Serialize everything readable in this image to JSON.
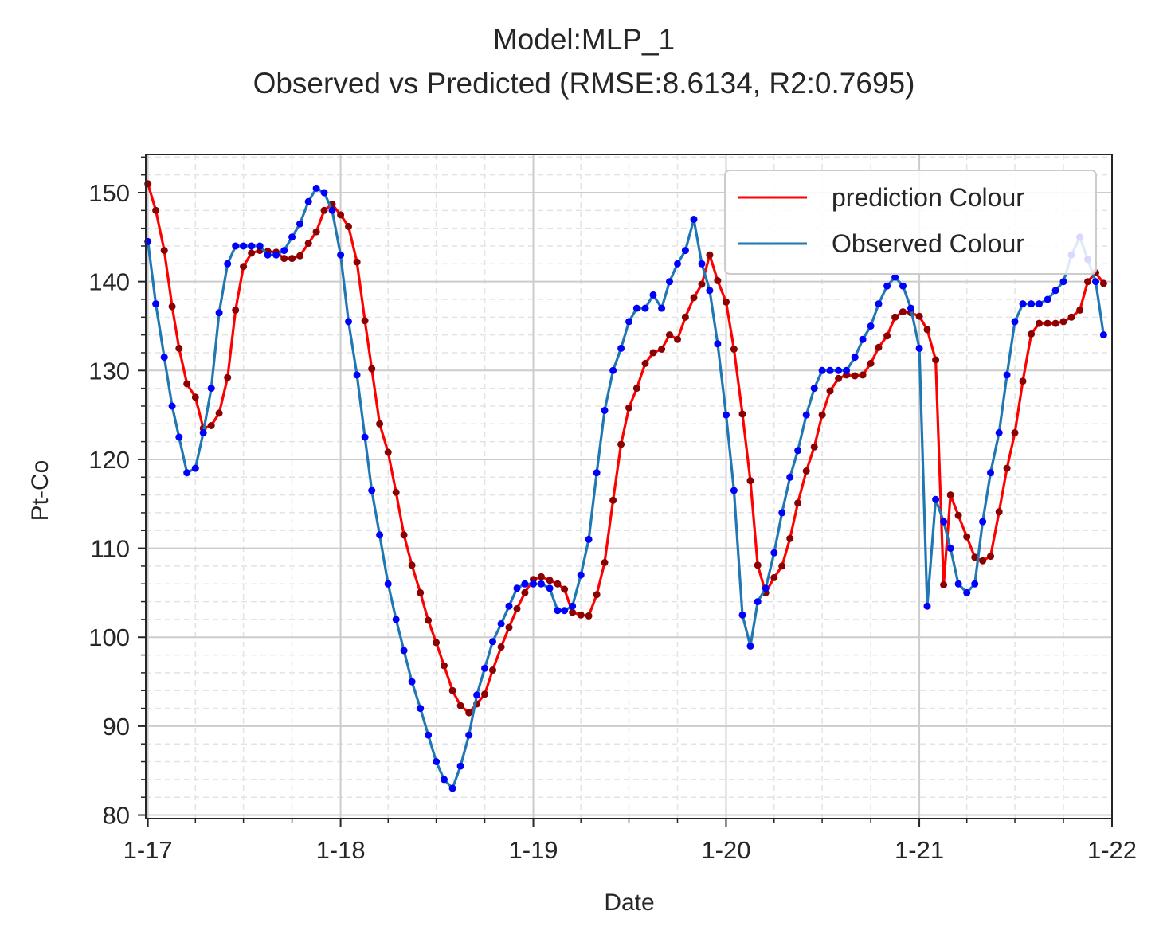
{
  "colors": {
    "prediction": "#ff0000",
    "prediction_marker": "#8b0000",
    "observed": "#1f77b4",
    "observed_marker": "#0000ff",
    "grid_major": "#cccccc",
    "grid_minor": "#e3e3e3",
    "axes": "#262626"
  },
  "chart_data": {
    "type": "line",
    "title_line1": "Model:MLP_1",
    "title_line2": "Observed vs Predicted (RMSE:8.6134, R2:0.7695)",
    "xlabel": "Date",
    "ylabel": "Pt-Co",
    "x_tick_labels": [
      "1-17",
      "1-18",
      "1-19",
      "1-20",
      "1-21",
      "1-22"
    ],
    "x_tick_dates": [
      "2017-01-01",
      "2018-01-01",
      "2019-01-01",
      "2020-01-01",
      "2021-01-01",
      "2022-01-01"
    ],
    "xlim": [
      "2016-12-28",
      "2022-01-01"
    ],
    "y_ticks": [
      80,
      90,
      100,
      110,
      120,
      130,
      140,
      150
    ],
    "ylim": [
      79.6,
      154.3
    ],
    "grid": true,
    "legend_position": "top-right",
    "series": [
      {
        "name": "prediction Colour",
        "values": [
          [
            "2017-01-01",
            151.0
          ],
          [
            "2017-01-16",
            148.0
          ],
          [
            "2017-02-01",
            143.5
          ],
          [
            "2017-02-16",
            137.2
          ],
          [
            "2017-03-01",
            132.5
          ],
          [
            "2017-03-16",
            128.5
          ],
          [
            "2017-04-01",
            127.0
          ],
          [
            "2017-04-16",
            123.5
          ],
          [
            "2017-05-01",
            123.8
          ],
          [
            "2017-05-16",
            125.2
          ],
          [
            "2017-06-01",
            129.2
          ],
          [
            "2017-06-16",
            136.8
          ],
          [
            "2017-07-01",
            141.7
          ],
          [
            "2017-07-16",
            143.2
          ],
          [
            "2017-08-01",
            143.5
          ],
          [
            "2017-08-16",
            143.4
          ],
          [
            "2017-09-01",
            143.3
          ],
          [
            "2017-09-16",
            142.6
          ],
          [
            "2017-10-01",
            142.6
          ],
          [
            "2017-10-16",
            142.9
          ],
          [
            "2017-11-01",
            144.3
          ],
          [
            "2017-11-16",
            145.6
          ],
          [
            "2017-12-01",
            148.0
          ],
          [
            "2017-12-16",
            148.7
          ],
          [
            "2018-01-01",
            147.5
          ],
          [
            "2018-01-16",
            146.2
          ],
          [
            "2018-02-01",
            142.2
          ],
          [
            "2018-02-16",
            135.6
          ],
          [
            "2018-03-01",
            130.2
          ],
          [
            "2018-03-16",
            124.0
          ],
          [
            "2018-04-01",
            120.8
          ],
          [
            "2018-04-16",
            116.3
          ],
          [
            "2018-05-01",
            111.5
          ],
          [
            "2018-05-16",
            108.1
          ],
          [
            "2018-06-01",
            105.0
          ],
          [
            "2018-06-16",
            101.9
          ],
          [
            "2018-07-01",
            99.4
          ],
          [
            "2018-07-16",
            96.8
          ],
          [
            "2018-08-01",
            94.0
          ],
          [
            "2018-08-16",
            92.3
          ],
          [
            "2018-09-01",
            91.5
          ],
          [
            "2018-09-16",
            92.5
          ],
          [
            "2018-10-01",
            93.6
          ],
          [
            "2018-10-16",
            96.3
          ],
          [
            "2018-11-01",
            98.9
          ],
          [
            "2018-11-16",
            101.1
          ],
          [
            "2018-12-01",
            103.2
          ],
          [
            "2018-12-16",
            105.0
          ],
          [
            "2019-01-01",
            106.5
          ],
          [
            "2019-01-16",
            106.8
          ],
          [
            "2019-02-01",
            106.4
          ],
          [
            "2019-02-16",
            106.0
          ],
          [
            "2019-03-01",
            105.4
          ],
          [
            "2019-03-16",
            102.8
          ],
          [
            "2019-04-01",
            102.5
          ],
          [
            "2019-04-16",
            102.4
          ],
          [
            "2019-05-01",
            104.8
          ],
          [
            "2019-05-16",
            108.4
          ],
          [
            "2019-06-01",
            115.4
          ],
          [
            "2019-06-16",
            121.7
          ],
          [
            "2019-07-01",
            125.8
          ],
          [
            "2019-07-16",
            128.0
          ],
          [
            "2019-08-01",
            130.8
          ],
          [
            "2019-08-16",
            132.0
          ],
          [
            "2019-09-01",
            132.4
          ],
          [
            "2019-09-16",
            134.0
          ],
          [
            "2019-10-01",
            133.5
          ],
          [
            "2019-10-16",
            136.0
          ],
          [
            "2019-11-01",
            138.2
          ],
          [
            "2019-11-16",
            139.7
          ],
          [
            "2019-12-01",
            143.0
          ],
          [
            "2019-12-16",
            140.1
          ],
          [
            "2020-01-01",
            137.7
          ],
          [
            "2020-01-16",
            132.4
          ],
          [
            "2020-02-01",
            125.1
          ],
          [
            "2020-02-16",
            117.6
          ],
          [
            "2020-03-01",
            108.1
          ],
          [
            "2020-03-16",
            105.0
          ],
          [
            "2020-04-01",
            106.7
          ],
          [
            "2020-04-16",
            108.0
          ],
          [
            "2020-05-01",
            111.1
          ],
          [
            "2020-05-16",
            115.1
          ],
          [
            "2020-06-01",
            118.7
          ],
          [
            "2020-06-16",
            121.4
          ],
          [
            "2020-07-01",
            125.0
          ],
          [
            "2020-07-16",
            127.7
          ],
          [
            "2020-08-01",
            129.1
          ],
          [
            "2020-08-16",
            129.5
          ],
          [
            "2020-09-01",
            129.4
          ],
          [
            "2020-09-16",
            129.5
          ],
          [
            "2020-10-01",
            130.8
          ],
          [
            "2020-10-16",
            132.6
          ],
          [
            "2020-11-01",
            133.9
          ],
          [
            "2020-11-16",
            136.0
          ],
          [
            "2020-12-01",
            136.6
          ],
          [
            "2020-12-16",
            136.5
          ],
          [
            "2021-01-01",
            136.1
          ],
          [
            "2021-01-16",
            134.6
          ],
          [
            "2021-02-01",
            131.2
          ],
          [
            "2021-02-16",
            105.9
          ],
          [
            "2021-03-01",
            116.0
          ],
          [
            "2021-03-16",
            113.7
          ],
          [
            "2021-04-01",
            111.3
          ],
          [
            "2021-04-16",
            109.0
          ],
          [
            "2021-05-01",
            108.6
          ],
          [
            "2021-05-16",
            109.1
          ],
          [
            "2021-06-01",
            114.1
          ],
          [
            "2021-06-16",
            119.0
          ],
          [
            "2021-07-01",
            123.0
          ],
          [
            "2021-07-16",
            128.8
          ],
          [
            "2021-08-01",
            134.1
          ],
          [
            "2021-08-16",
            135.3
          ],
          [
            "2021-09-01",
            135.3
          ],
          [
            "2021-09-16",
            135.3
          ],
          [
            "2021-10-01",
            135.5
          ],
          [
            "2021-10-16",
            136.0
          ],
          [
            "2021-11-01",
            136.8
          ],
          [
            "2021-11-16",
            140.0
          ],
          [
            "2021-12-01",
            141.0
          ],
          [
            "2021-12-16",
            139.8
          ]
        ]
      },
      {
        "name": "Observed Colour",
        "values": [
          [
            "2017-01-01",
            144.5
          ],
          [
            "2017-01-16",
            137.5
          ],
          [
            "2017-02-01",
            131.5
          ],
          [
            "2017-02-16",
            126.0
          ],
          [
            "2017-03-01",
            122.5
          ],
          [
            "2017-03-16",
            118.5
          ],
          [
            "2017-04-01",
            119.0
          ],
          [
            "2017-04-16",
            123.0
          ],
          [
            "2017-05-01",
            128.0
          ],
          [
            "2017-05-16",
            136.5
          ],
          [
            "2017-06-01",
            142.0
          ],
          [
            "2017-06-16",
            144.0
          ],
          [
            "2017-07-01",
            144.0
          ],
          [
            "2017-07-16",
            144.0
          ],
          [
            "2017-08-01",
            144.0
          ],
          [
            "2017-08-16",
            143.0
          ],
          [
            "2017-09-01",
            143.0
          ],
          [
            "2017-09-16",
            143.5
          ],
          [
            "2017-10-01",
            145.0
          ],
          [
            "2017-10-16",
            146.5
          ],
          [
            "2017-11-01",
            149.0
          ],
          [
            "2017-11-16",
            150.5
          ],
          [
            "2017-12-01",
            150.0
          ],
          [
            "2017-12-16",
            148.0
          ],
          [
            "2018-01-01",
            143.0
          ],
          [
            "2018-01-16",
            135.5
          ],
          [
            "2018-02-01",
            129.5
          ],
          [
            "2018-02-16",
            122.5
          ],
          [
            "2018-03-01",
            116.5
          ],
          [
            "2018-03-16",
            111.5
          ],
          [
            "2018-04-01",
            106.0
          ],
          [
            "2018-04-16",
            102.0
          ],
          [
            "2018-05-01",
            98.5
          ],
          [
            "2018-05-16",
            95.0
          ],
          [
            "2018-06-01",
            92.0
          ],
          [
            "2018-06-16",
            89.0
          ],
          [
            "2018-07-01",
            86.0
          ],
          [
            "2018-07-16",
            84.0
          ],
          [
            "2018-08-01",
            83.0
          ],
          [
            "2018-08-16",
            85.5
          ],
          [
            "2018-09-01",
            89.0
          ],
          [
            "2018-09-16",
            93.5
          ],
          [
            "2018-10-01",
            96.5
          ],
          [
            "2018-10-16",
            99.5
          ],
          [
            "2018-11-01",
            101.5
          ],
          [
            "2018-11-16",
            103.5
          ],
          [
            "2018-12-01",
            105.5
          ],
          [
            "2018-12-16",
            106.0
          ],
          [
            "2019-01-01",
            106.0
          ],
          [
            "2019-01-16",
            106.0
          ],
          [
            "2019-02-01",
            105.5
          ],
          [
            "2019-02-16",
            103.0
          ],
          [
            "2019-03-01",
            103.0
          ],
          [
            "2019-03-16",
            103.5
          ],
          [
            "2019-04-01",
            107.0
          ],
          [
            "2019-04-16",
            111.0
          ],
          [
            "2019-05-01",
            118.5
          ],
          [
            "2019-05-16",
            125.5
          ],
          [
            "2019-06-01",
            130.0
          ],
          [
            "2019-06-16",
            132.5
          ],
          [
            "2019-07-01",
            135.5
          ],
          [
            "2019-07-16",
            137.0
          ],
          [
            "2019-08-01",
            137.0
          ],
          [
            "2019-08-16",
            138.5
          ],
          [
            "2019-09-01",
            137.0
          ],
          [
            "2019-09-16",
            140.0
          ],
          [
            "2019-10-01",
            142.0
          ],
          [
            "2019-10-16",
            143.5
          ],
          [
            "2019-11-01",
            147.0
          ],
          [
            "2019-11-16",
            142.0
          ],
          [
            "2019-12-01",
            139.0
          ],
          [
            "2019-12-16",
            133.0
          ],
          [
            "2020-01-01",
            125.0
          ],
          [
            "2020-01-16",
            116.5
          ],
          [
            "2020-02-01",
            102.5
          ],
          [
            "2020-02-16",
            99.0
          ],
          [
            "2020-03-01",
            104.0
          ],
          [
            "2020-03-16",
            105.5
          ],
          [
            "2020-04-01",
            109.5
          ],
          [
            "2020-04-16",
            114.0
          ],
          [
            "2020-05-01",
            118.0
          ],
          [
            "2020-05-16",
            121.0
          ],
          [
            "2020-06-01",
            125.0
          ],
          [
            "2020-06-16",
            128.0
          ],
          [
            "2020-07-01",
            130.0
          ],
          [
            "2020-07-16",
            130.0
          ],
          [
            "2020-08-01",
            130.0
          ],
          [
            "2020-08-16",
            130.0
          ],
          [
            "2020-09-01",
            131.5
          ],
          [
            "2020-09-16",
            133.5
          ],
          [
            "2020-10-01",
            135.0
          ],
          [
            "2020-10-16",
            137.5
          ],
          [
            "2020-11-01",
            139.5
          ],
          [
            "2020-11-16",
            140.5
          ],
          [
            "2020-12-01",
            139.5
          ],
          [
            "2020-12-16",
            137.0
          ],
          [
            "2021-01-01",
            132.5
          ],
          [
            "2021-01-16",
            103.5
          ],
          [
            "2021-02-01",
            115.5
          ],
          [
            "2021-02-16",
            113.0
          ],
          [
            "2021-03-01",
            110.0
          ],
          [
            "2021-03-16",
            106.0
          ],
          [
            "2021-04-01",
            105.0
          ],
          [
            "2021-04-16",
            106.0
          ],
          [
            "2021-05-01",
            113.0
          ],
          [
            "2021-05-16",
            118.5
          ],
          [
            "2021-06-01",
            123.0
          ],
          [
            "2021-06-16",
            129.5
          ],
          [
            "2021-07-01",
            135.5
          ],
          [
            "2021-07-16",
            137.5
          ],
          [
            "2021-08-01",
            137.5
          ],
          [
            "2021-08-16",
            137.5
          ],
          [
            "2021-09-01",
            138.0
          ],
          [
            "2021-09-16",
            139.0
          ],
          [
            "2021-10-01",
            140.0
          ],
          [
            "2021-10-16",
            143.0
          ],
          [
            "2021-11-01",
            145.0
          ],
          [
            "2021-11-16",
            142.5
          ],
          [
            "2021-12-01",
            140.0
          ],
          [
            "2021-12-16",
            134.0
          ]
        ]
      }
    ]
  }
}
